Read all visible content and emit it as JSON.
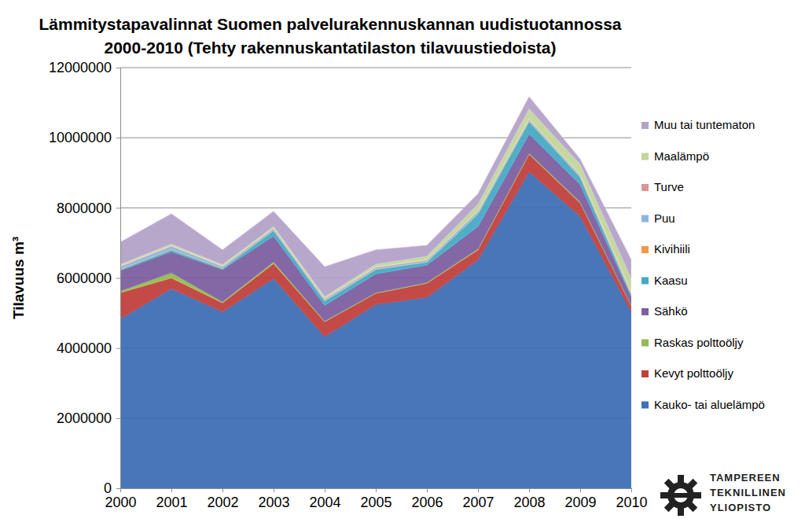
{
  "chart_data": {
    "type": "area",
    "stacked": true,
    "title": "Lämmitystapavalinnat Suomen palvelurakennuskannan uudistuotannossa\n2000-2010 (Tehty rakennuskantatilaston tilavuustiedoista)",
    "y_label": "Tilavuus m³",
    "annotations": [
      "TAMPEREEN TEKNILLINEN YLIOPISTO"
    ],
    "x": [
      2000,
      2001,
      2002,
      2003,
      2004,
      2005,
      2006,
      2007,
      2008,
      2009,
      2010
    ],
    "xlim": [
      2000,
      2010
    ],
    "xticks": [
      2000,
      2001,
      2002,
      2003,
      2004,
      2005,
      2006,
      2007,
      2008,
      2009,
      2010
    ],
    "ylim": [
      0,
      12000000
    ],
    "yticks": [
      0,
      2000000,
      4000000,
      6000000,
      8000000,
      10000000,
      12000000
    ],
    "grid": true,
    "legend": "right",
    "series": [
      {
        "name": "Kauko- tai aluelämpö",
        "color": "#3f6fb5",
        "values": [
          4840000,
          5700000,
          5040000,
          5990000,
          4330000,
          5250000,
          5450000,
          6520000,
          9040000,
          7760000,
          5040000
        ]
      },
      {
        "name": "Kevyt polttoöljy",
        "color": "#c0403c",
        "values": [
          740000,
          300000,
          250000,
          420000,
          420000,
          310000,
          400000,
          280000,
          490000,
          380000,
          160000
        ]
      },
      {
        "name": "Raskas polttoöljy",
        "color": "#98b954",
        "values": [
          50000,
          150000,
          30000,
          50000,
          20000,
          20000,
          20000,
          30000,
          30000,
          30000,
          20000
        ]
      },
      {
        "name": "Sähkö",
        "color": "#7d60a0",
        "values": [
          580000,
          600000,
          920000,
          740000,
          450000,
          540000,
          500000,
          640000,
          550000,
          500000,
          250000
        ]
      },
      {
        "name": "Kaasu",
        "color": "#46aac5",
        "values": [
          30000,
          50000,
          30000,
          150000,
          120000,
          120000,
          80000,
          350000,
          350000,
          200000,
          50000
        ]
      },
      {
        "name": "Kivihiili",
        "color": "#f79646",
        "values": [
          10000,
          10000,
          10000,
          10000,
          10000,
          10000,
          10000,
          10000,
          10000,
          10000,
          10000
        ]
      },
      {
        "name": "Puu",
        "color": "#8eb4e3",
        "values": [
          80000,
          100000,
          50000,
          50000,
          50000,
          50000,
          50000,
          70000,
          50000,
          50000,
          50000
        ]
      },
      {
        "name": "Turve",
        "color": "#d99694",
        "values": [
          10000,
          10000,
          10000,
          10000,
          10000,
          10000,
          10000,
          10000,
          10000,
          10000,
          10000
        ]
      },
      {
        "name": "Maalämpö",
        "color": "#c3d69b",
        "values": [
          50000,
          50000,
          40000,
          50000,
          60000,
          80000,
          100000,
          200000,
          300000,
          300000,
          400000
        ]
      },
      {
        "name": "Muu tai tuntematon",
        "color": "#b3a2c7",
        "values": [
          630000,
          860000,
          420000,
          430000,
          850000,
          410000,
          310000,
          290000,
          340000,
          150000,
          530000
        ]
      }
    ]
  }
}
